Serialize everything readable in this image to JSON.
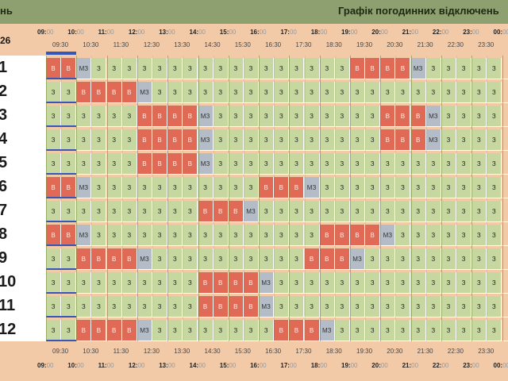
{
  "header": {
    "left_title": "нь",
    "right_title": "Графік погодинних відключень",
    "date_label": "26"
  },
  "axis": {
    "hours": [
      "09",
      "10",
      "11",
      "12",
      "13",
      "14",
      "15",
      "16",
      "17",
      "18",
      "19",
      "20",
      "21",
      "22",
      "23",
      "00"
    ],
    "minutes": "00",
    "halves": [
      "09:30",
      "10:30",
      "11:30",
      "12:30",
      "13:30",
      "14:30",
      "15:30",
      "16:30",
      "17:30",
      "18:30",
      "19:30",
      "20:30",
      "21:30",
      "22:30",
      "23:30"
    ],
    "last_bottom_label": "00:"
  },
  "colors": {
    "green": "#c7d7a0",
    "outage": "#e06a55",
    "maybe": "#b3bcc7",
    "accent": "#3557b8"
  },
  "legend_codes": {
    "z": "З",
    "b": "В",
    "m": "МЗ"
  },
  "rows": [
    {
      "label": "1",
      "cells": "bbmzzzzzzzzzzzzzzzzzbbbbmzzzzzzzz"
    },
    {
      "label": "2",
      "cells": "zzbbbbmzzzzzzzzzzzzzzzzzzzzzzzzzz"
    },
    {
      "label": "3",
      "cells": "zzzzzzbbbbmzzzzzzzzzzzbbbmzzzzzzz"
    },
    {
      "label": "4",
      "cells": "zzzzzzbbbbmzzzzzzzzzzzbbbmzzzzzzz"
    },
    {
      "label": "5",
      "cells": "zzzzzzbbbbmzzzzzzzzzzzzzzzzzzzzzz"
    },
    {
      "label": "6",
      "cells": "bbmzzzzzzzzzzzbbbmzzzzzzzzzzzzzzz"
    },
    {
      "label": "7",
      "cells": "zzzzzzzzzzbbbmzzzzzzzzzzzzzzzzzzz"
    },
    {
      "label": "8",
      "cells": "bbmzzzzzzzzzzzzzzzbbbbmzzzzzzzzzz"
    },
    {
      "label": "9",
      "cells": "zzbbbbmzzzzzzzzzzbbbmzzzzzzzzzzzz"
    },
    {
      "label": "10",
      "cells": "zzzzzzzzzzbbbbmzzzzzzzzzzzzzzzzzz"
    },
    {
      "label": "11",
      "cells": "zzzzzzzzzzbbbbmzzzzzzzzzzzzzzzzzz"
    },
    {
      "label": "12",
      "cells": "zzbbbbmzzzzzzzzbbbmzzzzzzzzzzzzzz"
    }
  ]
}
